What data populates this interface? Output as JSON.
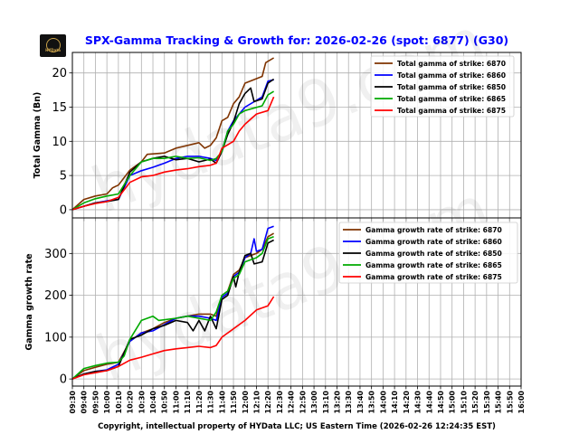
{
  "title": "SPX-Gamma Tracking & Growth for: 2026-02-26 (spot: 6877) (G30)",
  "footer": "Copyright, intellectual property of HYData LLC; US Eastern Time (2026-02-26 12:24:35 EST)",
  "logo_text": "HYData",
  "watermark": "hydata9.com",
  "chart_data": [
    {
      "type": "line",
      "ylabel": "Total Gamma (Bn)",
      "ylim": [
        -1.2,
        23
      ],
      "yticks": [
        0,
        5,
        10,
        15,
        20
      ],
      "grid": true,
      "legend": "top-right",
      "series": [
        {
          "name": "Total gamma of strike: 6870",
          "color": "#7f3300",
          "points": [
            [
              "09:30",
              0
            ],
            [
              "09:40",
              1.5
            ],
            [
              "09:50",
              2.0
            ],
            [
              "10:00",
              2.3
            ],
            [
              "10:05",
              3.2
            ],
            [
              "10:10",
              3.6
            ],
            [
              "10:20",
              5.8
            ],
            [
              "10:30",
              7.0
            ],
            [
              "10:35",
              8.1
            ],
            [
              "10:50",
              8.3
            ],
            [
              "11:00",
              9.0
            ],
            [
              "11:20",
              9.8
            ],
            [
              "11:25",
              9.0
            ],
            [
              "11:30",
              9.4
            ],
            [
              "11:35",
              10.5
            ],
            [
              "11:40",
              13.0
            ],
            [
              "11:45",
              13.5
            ],
            [
              "11:50",
              15.5
            ],
            [
              "11:55",
              16.5
            ],
            [
              "12:00",
              18.5
            ],
            [
              "12:15",
              19.5
            ],
            [
              "12:18",
              21.5
            ],
            [
              "12:25",
              22.2
            ]
          ]
        },
        {
          "name": "Total gamma of strike: 6860",
          "color": "#0000ff",
          "points": [
            [
              "09:30",
              0
            ],
            [
              "09:40",
              0.5
            ],
            [
              "09:50",
              1.0
            ],
            [
              "10:00",
              1.3
            ],
            [
              "10:10",
              1.5
            ],
            [
              "10:20",
              5.0
            ],
            [
              "10:30",
              5.7
            ],
            [
              "10:40",
              6.2
            ],
            [
              "10:50",
              6.8
            ],
            [
              "11:00",
              7.5
            ],
            [
              "11:10",
              7.8
            ],
            [
              "11:20",
              7.8
            ],
            [
              "11:30",
              7.5
            ],
            [
              "11:35",
              7.2
            ],
            [
              "11:40",
              8.5
            ],
            [
              "11:45",
              11.5
            ],
            [
              "11:50",
              13.0
            ],
            [
              "11:55",
              14.0
            ],
            [
              "12:00",
              15.0
            ],
            [
              "12:10",
              16.0
            ],
            [
              "12:15",
              16.5
            ],
            [
              "12:20",
              18.8
            ],
            [
              "12:25",
              19.0
            ]
          ]
        },
        {
          "name": "Total gamma of strike: 6850",
          "color": "#000000",
          "points": [
            [
              "09:30",
              0
            ],
            [
              "09:40",
              0.5
            ],
            [
              "09:50",
              1.0
            ],
            [
              "10:00",
              1.2
            ],
            [
              "10:10",
              1.5
            ],
            [
              "10:20",
              5.5
            ],
            [
              "10:30",
              7.0
            ],
            [
              "10:40",
              7.5
            ],
            [
              "10:50",
              7.8
            ],
            [
              "11:00",
              7.3
            ],
            [
              "11:10",
              7.5
            ],
            [
              "11:20",
              7.0
            ],
            [
              "11:30",
              7.4
            ],
            [
              "11:35",
              6.8
            ],
            [
              "11:40",
              8.5
            ],
            [
              "11:45",
              11.0
            ],
            [
              "11:50",
              12.8
            ],
            [
              "11:55",
              15.5
            ],
            [
              "12:00",
              17.0
            ],
            [
              "12:05",
              17.8
            ],
            [
              "12:08",
              15.8
            ],
            [
              "12:15",
              16.2
            ],
            [
              "12:20",
              18.5
            ],
            [
              "12:25",
              19.1
            ]
          ]
        },
        {
          "name": "Total gamma of strike: 6865",
          "color": "#00aa00",
          "points": [
            [
              "09:30",
              0
            ],
            [
              "09:40",
              1.0
            ],
            [
              "09:50",
              1.6
            ],
            [
              "10:00",
              2.0
            ],
            [
              "10:10",
              2.3
            ],
            [
              "10:20",
              5.0
            ],
            [
              "10:30",
              7.0
            ],
            [
              "10:40",
              7.5
            ],
            [
              "10:50",
              7.5
            ],
            [
              "11:00",
              7.8
            ],
            [
              "11:10",
              7.5
            ],
            [
              "11:20",
              7.6
            ],
            [
              "11:30",
              7.2
            ],
            [
              "11:35",
              7.5
            ],
            [
              "11:40",
              8.5
            ],
            [
              "11:45",
              11.5
            ],
            [
              "11:50",
              12.5
            ],
            [
              "11:55",
              14.0
            ],
            [
              "12:00",
              14.5
            ],
            [
              "12:15",
              15.2
            ],
            [
              "12:20",
              16.8
            ],
            [
              "12:25",
              17.3
            ]
          ]
        },
        {
          "name": "Total gamma of strike: 6875",
          "color": "#ff0000",
          "points": [
            [
              "09:30",
              0
            ],
            [
              "09:40",
              0.5
            ],
            [
              "09:50",
              0.9
            ],
            [
              "10:00",
              1.2
            ],
            [
              "10:10",
              1.8
            ],
            [
              "10:20",
              4.0
            ],
            [
              "10:30",
              4.8
            ],
            [
              "10:40",
              5.0
            ],
            [
              "10:50",
              5.5
            ],
            [
              "11:00",
              5.8
            ],
            [
              "11:10",
              6.0
            ],
            [
              "11:20",
              6.3
            ],
            [
              "11:30",
              6.5
            ],
            [
              "11:35",
              6.8
            ],
            [
              "11:40",
              9.0
            ],
            [
              "11:50",
              10.0
            ],
            [
              "11:55",
              11.5
            ],
            [
              "12:00",
              12.5
            ],
            [
              "12:10",
              14.0
            ],
            [
              "12:20",
              14.5
            ],
            [
              "12:25",
              16.5
            ]
          ]
        }
      ]
    },
    {
      "type": "line",
      "ylabel": "Gamma growth rate",
      "ylim": [
        -17,
        385
      ],
      "yticks": [
        0,
        100,
        200,
        300
      ],
      "grid": true,
      "legend": "top-right",
      "xticks": [
        "09:30",
        "09:40",
        "09:50",
        "10:00",
        "10:10",
        "10:20",
        "10:30",
        "10:40",
        "10:50",
        "11:00",
        "11:10",
        "11:20",
        "11:30",
        "11:40",
        "11:50",
        "12:00",
        "12:10",
        "12:20",
        "12:30",
        "12:40",
        "12:50",
        "13:00",
        "13:10",
        "13:20",
        "13:30",
        "13:40",
        "13:50",
        "14:00",
        "14:10",
        "14:20",
        "14:30",
        "14:40",
        "14:50",
        "15:00",
        "15:10",
        "15:20",
        "15:30",
        "15:40",
        "15:50",
        "16:00"
      ],
      "series": [
        {
          "name": "Gamma growth rate of strike: 6870",
          "color": "#7f3300",
          "points": [
            [
              "09:30",
              0
            ],
            [
              "09:40",
              20
            ],
            [
              "09:50",
              28
            ],
            [
              "10:00",
              35
            ],
            [
              "10:10",
              40
            ],
            [
              "10:20",
              90
            ],
            [
              "10:30",
              110
            ],
            [
              "10:40",
              120
            ],
            [
              "10:50",
              135
            ],
            [
              "11:00",
              145
            ],
            [
              "11:10",
              150
            ],
            [
              "11:20",
              155
            ],
            [
              "11:30",
              155
            ],
            [
              "11:35",
              150
            ],
            [
              "11:40",
              200
            ],
            [
              "11:45",
              210
            ],
            [
              "11:50",
              250
            ],
            [
              "11:55",
              260
            ],
            [
              "12:00",
              290
            ],
            [
              "12:10",
              300
            ],
            [
              "12:15",
              310
            ],
            [
              "12:20",
              340
            ],
            [
              "12:25",
              348
            ]
          ]
        },
        {
          "name": "Gamma growth rate of strike: 6860",
          "color": "#0000ff",
          "points": [
            [
              "09:30",
              0
            ],
            [
              "09:40",
              12
            ],
            [
              "09:50",
              18
            ],
            [
              "10:00",
              22
            ],
            [
              "10:10",
              35
            ],
            [
              "10:20",
              90
            ],
            [
              "10:30",
              110
            ],
            [
              "10:40",
              115
            ],
            [
              "10:50",
              130
            ],
            [
              "11:00",
              145
            ],
            [
              "11:10",
              150
            ],
            [
              "11:20",
              150
            ],
            [
              "11:30",
              145
            ],
            [
              "11:35",
              140
            ],
            [
              "11:40",
              195
            ],
            [
              "11:45",
              205
            ],
            [
              "11:50",
              245
            ],
            [
              "11:55",
              255
            ],
            [
              "12:00",
              290
            ],
            [
              "12:05",
              300
            ],
            [
              "12:08",
              335
            ],
            [
              "12:10",
              305
            ],
            [
              "12:15",
              310
            ],
            [
              "12:20",
              360
            ],
            [
              "12:25",
              365
            ]
          ]
        },
        {
          "name": "Gamma growth rate of strike: 6850",
          "color": "#000000",
          "points": [
            [
              "09:30",
              0
            ],
            [
              "09:40",
              12
            ],
            [
              "09:50",
              18
            ],
            [
              "10:00",
              20
            ],
            [
              "10:10",
              30
            ],
            [
              "10:20",
              95
            ],
            [
              "10:30",
              105
            ],
            [
              "10:40",
              120
            ],
            [
              "10:50",
              128
            ],
            [
              "11:00",
              140
            ],
            [
              "11:10",
              135
            ],
            [
              "11:15",
              115
            ],
            [
              "11:20",
              140
            ],
            [
              "11:25",
              115
            ],
            [
              "11:30",
              150
            ],
            [
              "11:35",
              120
            ],
            [
              "11:40",
              190
            ],
            [
              "11:45",
              200
            ],
            [
              "11:50",
              245
            ],
            [
              "11:52",
              220
            ],
            [
              "11:55",
              255
            ],
            [
              "12:00",
              295
            ],
            [
              "12:05",
              300
            ],
            [
              "12:08",
              275
            ],
            [
              "12:15",
              280
            ],
            [
              "12:20",
              325
            ],
            [
              "12:25",
              332
            ]
          ]
        },
        {
          "name": "Gamma growth rate of strike: 6865",
          "color": "#00aa00",
          "points": [
            [
              "09:30",
              0
            ],
            [
              "09:40",
              25
            ],
            [
              "09:50",
              32
            ],
            [
              "10:00",
              38
            ],
            [
              "10:10",
              40
            ],
            [
              "10:15",
              55
            ],
            [
              "10:20",
              95
            ],
            [
              "10:30",
              140
            ],
            [
              "10:40",
              150
            ],
            [
              "10:45",
              140
            ],
            [
              "11:00",
              145
            ],
            [
              "11:10",
              150
            ],
            [
              "11:20",
              145
            ],
            [
              "11:30",
              140
            ],
            [
              "11:35",
              160
            ],
            [
              "11:40",
              200
            ],
            [
              "11:45",
              210
            ],
            [
              "11:50",
              240
            ],
            [
              "11:55",
              250
            ],
            [
              "12:00",
              280
            ],
            [
              "12:10",
              290
            ],
            [
              "12:15",
              300
            ],
            [
              "12:20",
              335
            ],
            [
              "12:25",
              340
            ]
          ]
        },
        {
          "name": "Gamma growth rate of strike: 6875",
          "color": "#ff0000",
          "points": [
            [
              "09:30",
              0
            ],
            [
              "09:40",
              10
            ],
            [
              "09:50",
              15
            ],
            [
              "10:00",
              20
            ],
            [
              "10:10",
              30
            ],
            [
              "10:20",
              45
            ],
            [
              "10:30",
              52
            ],
            [
              "10:40",
              60
            ],
            [
              "10:50",
              68
            ],
            [
              "11:00",
              72
            ],
            [
              "11:10",
              75
            ],
            [
              "11:20",
              78
            ],
            [
              "11:30",
              75
            ],
            [
              "11:35",
              80
            ],
            [
              "11:40",
              100
            ],
            [
              "11:50",
              120
            ],
            [
              "12:00",
              140
            ],
            [
              "12:10",
              165
            ],
            [
              "12:20",
              175
            ],
            [
              "12:25",
              197
            ]
          ]
        }
      ]
    }
  ]
}
